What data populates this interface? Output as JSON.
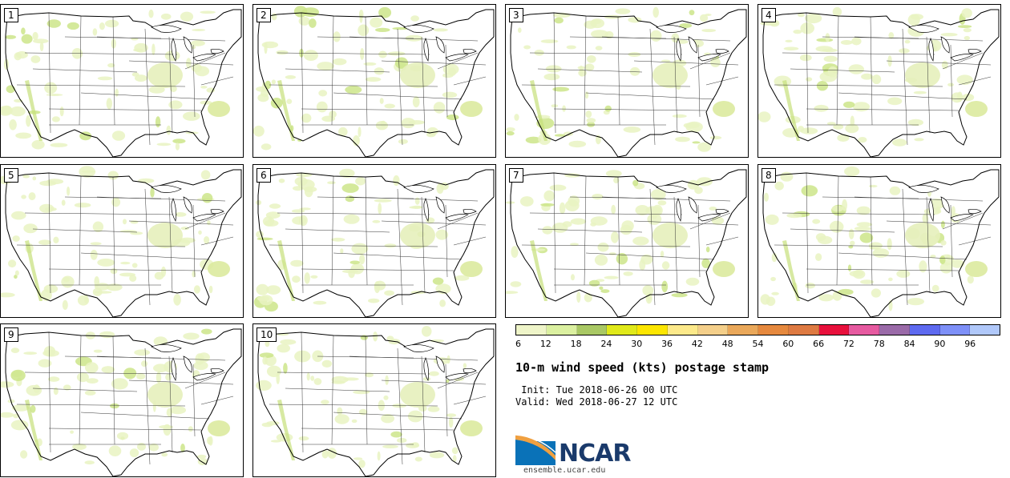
{
  "panels": [
    {
      "label": "1"
    },
    {
      "label": "2"
    },
    {
      "label": "3"
    },
    {
      "label": "4"
    },
    {
      "label": "5"
    },
    {
      "label": "6"
    },
    {
      "label": "7"
    },
    {
      "label": "8"
    },
    {
      "label": "9"
    },
    {
      "label": "10"
    }
  ],
  "colorbar": {
    "colors": [
      "#eff5c9",
      "#dbf0a0",
      "#a9c864",
      "#e0e91a",
      "#fce600",
      "#fce98a",
      "#f4cf8a",
      "#eaa85a",
      "#e6893e",
      "#de7a42",
      "#e8103c",
      "#e65aa0",
      "#9a6aa8",
      "#5e6af0",
      "#7e90f8",
      "#b0c8fa"
    ],
    "ticks": [
      "6",
      "12",
      "18",
      "24",
      "30",
      "36",
      "42",
      "48",
      "54",
      "60",
      "66",
      "72",
      "78",
      "84",
      "90",
      "96"
    ]
  },
  "title": "10-m wind speed (kts) postage stamp",
  "init_line": " Init: Tue 2018-06-26 00 UTC",
  "valid_line": "Valid: Wed 2018-06-27 12 UTC",
  "logo_text": "NCAR",
  "website": "ensemble.ucar.edu"
}
